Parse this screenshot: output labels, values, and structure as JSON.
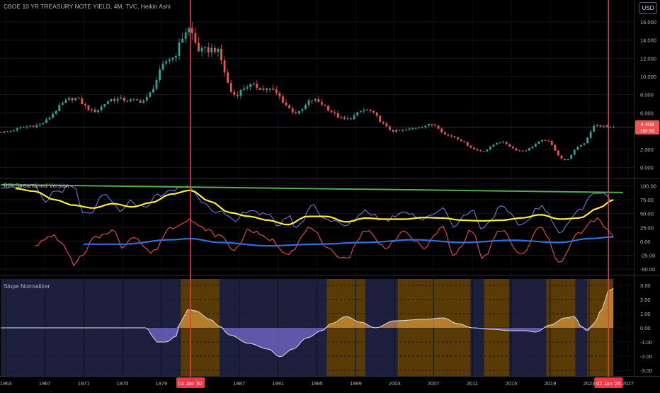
{
  "header": {
    "symbol_title": "CBOE 10 YR TREASURY NOTE YIELD, 4M, TVC, Heikin Ashi",
    "currency_button": "USD",
    "last_price": "4.409",
    "countdown": "1M 8d"
  },
  "colors": {
    "background": "#000000",
    "candle_up": "#26a69a",
    "candle_down": "#ef5350",
    "marker_line": "#f23645",
    "rsi_line": "#7e6fd6",
    "rsi_signal": "#ffeb3b",
    "momentum": "#f24b4b",
    "zero_trend": "#2f6fe0",
    "trendline": "#4caf50",
    "slope_positive_fill": "#ffb74d",
    "slope_negative_fill": "#7e6fd6",
    "band_orange": "#5a3a05",
    "band_blue": "#1c1f3e"
  },
  "markers": [
    {
      "label": "01 Jan '82",
      "year": 1982.0
    },
    {
      "label": "02 Jan '25",
      "year": 2025.0
    }
  ],
  "x_axis": {
    "ticks": [
      "1963",
      "1967",
      "1971",
      "1975",
      "1979",
      "1987",
      "1991",
      "1995",
      "1999",
      "2003",
      "2007",
      "2011",
      "2015",
      "2019",
      "2023",
      "2027"
    ],
    "tick_years": [
      1963,
      1967,
      1971,
      1975,
      1979,
      1987,
      1991,
      1995,
      1999,
      2003,
      2007,
      2011,
      2015,
      2019,
      2023,
      2027
    ],
    "range": [
      1962.4,
      2027.6
    ]
  },
  "panes": {
    "price": {
      "ticks": [
        "16.000",
        "14.000",
        "12.000",
        "10.000",
        "8.000",
        "6.000",
        "2.000",
        "0.000"
      ],
      "tick_values": [
        16,
        14,
        12,
        10,
        8,
        6,
        2,
        0
      ],
      "range": [
        -1.2,
        18.4
      ]
    },
    "rsi": {
      "title": "RSI Streamlined Version",
      "ticks": [
        "100.00",
        "75.00",
        "50.00",
        "25.00",
        "0.00",
        "-25.00",
        "-50.00"
      ],
      "tick_values": [
        100,
        75,
        50,
        25,
        0,
        -25,
        -50
      ],
      "range": [
        -60,
        112
      ]
    },
    "slope": {
      "title": "Slope Normalizer",
      "ticks": [
        "3.00",
        "2.00",
        "1.00",
        "0.00",
        "-1.00",
        "-2.00",
        "-3.00"
      ],
      "tick_values": [
        3,
        2,
        1,
        0,
        -1,
        -2,
        -3
      ],
      "range": [
        -3.4,
        3.7
      ]
    }
  },
  "chart_data": [
    {
      "type": "candlestick",
      "title": "CBOE 10 YR TREASURY NOTE YIELD, 4M, TVC, Heikin Ashi",
      "x_unit": "year",
      "key_points": [
        [
          1962.5,
          3.9
        ],
        [
          1966,
          4.6
        ],
        [
          1970,
          7.6
        ],
        [
          1972,
          6.2
        ],
        [
          1974,
          7.5
        ],
        [
          1977,
          7.3
        ],
        [
          1980,
          12.0
        ],
        [
          1981.8,
          15.2
        ],
        [
          1983,
          12.8
        ],
        [
          1984.5,
          13.0
        ],
        [
          1986.5,
          8.0
        ],
        [
          1988,
          9.0
        ],
        [
          1990,
          8.6
        ],
        [
          1993,
          6.0
        ],
        [
          1994.5,
          7.4
        ],
        [
          1998,
          5.3
        ],
        [
          2000,
          6.3
        ],
        [
          2003,
          4.0
        ],
        [
          2007,
          4.7
        ],
        [
          2008.5,
          3.5
        ],
        [
          2012,
          1.8
        ],
        [
          2013.8,
          2.8
        ],
        [
          2016,
          1.8
        ],
        [
          2018.5,
          3.0
        ],
        [
          2020.5,
          0.8
        ],
        [
          2022.2,
          2.5
        ],
        [
          2023.7,
          4.6
        ],
        [
          2025.5,
          4.409
        ]
      ],
      "last_value": 4.409,
      "y_range": [
        -1.2,
        18.4
      ]
    },
    {
      "type": "line",
      "title": "RSI Streamlined Version",
      "x_unit": "year",
      "series": [
        {
          "name": "",
          "color": "#7e6fd6",
          "points": [
            [
              1962.5,
              100
            ],
            [
              1966,
              98
            ],
            [
              1967,
              70
            ],
            [
              1968,
              90
            ],
            [
              1970,
              97
            ],
            [
              1971,
              48
            ],
            [
              1972,
              55
            ],
            [
              1973,
              82
            ],
            [
              1975,
              55
            ],
            [
              1976,
              72
            ],
            [
              1977,
              62
            ],
            [
              1979,
              85
            ],
            [
              1981.8,
              100
            ],
            [
              1983,
              75
            ],
            [
              1985,
              52
            ],
            [
              1986.5,
              35
            ],
            [
              1988,
              58
            ],
            [
              1990,
              45
            ],
            [
              1991,
              30
            ],
            [
              1992,
              45
            ],
            [
              1993,
              25
            ],
            [
              1994.5,
              65
            ],
            [
              1996,
              40
            ],
            [
              1998,
              28
            ],
            [
              2000,
              55
            ],
            [
              2002,
              38
            ],
            [
              2004,
              55
            ],
            [
              2006,
              40
            ],
            [
              2008,
              60
            ],
            [
              2009,
              30
            ],
            [
              2011,
              55
            ],
            [
              2012,
              25
            ],
            [
              2014,
              60
            ],
            [
              2016,
              30
            ],
            [
              2018,
              62
            ],
            [
              2020,
              20
            ],
            [
              2022,
              55
            ],
            [
              2023.7,
              90
            ],
            [
              2025,
              80
            ],
            [
              2025.5,
              75
            ]
          ]
        },
        {
          "name": "",
          "color": "#ffeb3b",
          "points": [
            [
              1964,
              95
            ],
            [
              1966,
              90
            ],
            [
              1968,
              75
            ],
            [
              1970,
              65
            ],
            [
              1972,
              60
            ],
            [
              1974,
              68
            ],
            [
              1976,
              62
            ],
            [
              1978,
              70
            ],
            [
              1980,
              85
            ],
            [
              1982,
              92
            ],
            [
              1984,
              72
            ],
            [
              1986,
              52
            ],
            [
              1988,
              45
            ],
            [
              1990,
              38
            ],
            [
              1992,
              30
            ],
            [
              1994,
              45
            ],
            [
              1996,
              45
            ],
            [
              1998,
              35
            ],
            [
              2000,
              42
            ],
            [
              2002,
              40
            ],
            [
              2004,
              40
            ],
            [
              2006,
              43
            ],
            [
              2008,
              42
            ],
            [
              2010,
              38
            ],
            [
              2012,
              37
            ],
            [
              2014,
              38
            ],
            [
              2016,
              42
            ],
            [
              2018,
              48
            ],
            [
              2020,
              40
            ],
            [
              2022,
              42
            ],
            [
              2024,
              60
            ],
            [
              2025.5,
              75
            ]
          ]
        },
        {
          "name": "",
          "color": "#f24b4b",
          "points": [
            [
              1966,
              -5
            ],
            [
              1968,
              10
            ],
            [
              1969,
              -10
            ],
            [
              1970,
              -40
            ],
            [
              1971,
              -25
            ],
            [
              1972,
              5
            ],
            [
              1974,
              20
            ],
            [
              1975,
              -10
            ],
            [
              1976,
              10
            ],
            [
              1978,
              -20
            ],
            [
              1980,
              25
            ],
            [
              1981.8,
              40
            ],
            [
              1983,
              25
            ],
            [
              1985,
              10
            ],
            [
              1986.5,
              -15
            ],
            [
              1988,
              20
            ],
            [
              1990,
              5
            ],
            [
              1992,
              -20
            ],
            [
              1994.5,
              25
            ],
            [
              1996,
              -15
            ],
            [
              1998,
              -30
            ],
            [
              2000,
              20
            ],
            [
              2002,
              -10
            ],
            [
              2004,
              15
            ],
            [
              2006,
              -10
            ],
            [
              2008,
              25
            ],
            [
              2009,
              -25
            ],
            [
              2011,
              20
            ],
            [
              2012,
              -30
            ],
            [
              2014,
              20
            ],
            [
              2016,
              -25
            ],
            [
              2018,
              25
            ],
            [
              2020,
              -35
            ],
            [
              2022,
              15
            ],
            [
              2023.7,
              40
            ],
            [
              2025,
              20
            ],
            [
              2025.5,
              5
            ]
          ]
        },
        {
          "name": "",
          "color": "#2f6fe0",
          "points": [
            [
              1971,
              -5
            ],
            [
              1975,
              -5
            ],
            [
              1980,
              3
            ],
            [
              1982,
              5
            ],
            [
              1985,
              -2
            ],
            [
              1990,
              -8
            ],
            [
              1995,
              -5
            ],
            [
              2000,
              -2
            ],
            [
              2005,
              3
            ],
            [
              2010,
              -2
            ],
            [
              2015,
              2
            ],
            [
              2020,
              -2
            ],
            [
              2023,
              5
            ],
            [
              2025.5,
              8
            ]
          ]
        },
        {
          "name": "",
          "color": "#4caf50",
          "points": [
            [
              1962.5,
              102
            ],
            [
              2026.5,
              88
            ]
          ]
        }
      ],
      "y_range": [
        -60,
        112
      ]
    },
    {
      "type": "area",
      "title": "Slope Normalizer",
      "x_unit": "year",
      "series": [
        {
          "name": "",
          "points": [
            [
              1962.5,
              0
            ],
            [
              1977.5,
              0
            ],
            [
              1978,
              -0.5
            ],
            [
              1978.5,
              -1.0
            ],
            [
              1979.5,
              -1.0
            ],
            [
              1980.5,
              -0.6
            ],
            [
              1981,
              0.5
            ],
            [
              1981.8,
              1.3
            ],
            [
              1982.5,
              1.2
            ],
            [
              1984,
              0.6
            ],
            [
              1985,
              0.1
            ],
            [
              1986,
              -0.5
            ],
            [
              1988,
              -1.1
            ],
            [
              1990,
              -1.5
            ],
            [
              1991.2,
              -2.05
            ],
            [
              1992.5,
              -1.5
            ],
            [
              1994,
              -0.7
            ],
            [
              1995.5,
              -0.2
            ],
            [
              1996.5,
              0.3
            ],
            [
              1998,
              0.8
            ],
            [
              1999.5,
              0.4
            ],
            [
              2001,
              0
            ],
            [
              2003,
              0.5
            ],
            [
              2006,
              0.6
            ],
            [
              2008,
              0.7
            ],
            [
              2009.5,
              0.3
            ],
            [
              2011,
              0
            ],
            [
              2013,
              -0.1
            ],
            [
              2015,
              -0.2
            ],
            [
              2016.5,
              -0.2
            ],
            [
              2017.5,
              -0.3
            ],
            [
              2019,
              0.2
            ],
            [
              2020.5,
              0.7
            ],
            [
              2021.5,
              0.8
            ],
            [
              2022.2,
              0.1
            ],
            [
              2022.8,
              -0.2
            ],
            [
              2023.5,
              0.3
            ],
            [
              2024.3,
              1.3
            ],
            [
              2025,
              2.6
            ],
            [
              2025.5,
              2.8
            ]
          ]
        }
      ],
      "background_bands": [
        {
          "from": 1962.5,
          "to": 1981,
          "color": "blue"
        },
        {
          "from": 1981,
          "to": 1985,
          "color": "orange"
        },
        {
          "from": 1985,
          "to": 1996,
          "color": "blue"
        },
        {
          "from": 1996,
          "to": 2000,
          "color": "orange"
        },
        {
          "from": 2000,
          "to": 2003.3,
          "color": "blue"
        },
        {
          "from": 2003.3,
          "to": 2010.8,
          "color": "orange"
        },
        {
          "from": 2010.8,
          "to": 2012.2,
          "color": "blue"
        },
        {
          "from": 2012.2,
          "to": 2014.8,
          "color": "orange"
        },
        {
          "from": 2014.8,
          "to": 2018.6,
          "color": "blue"
        },
        {
          "from": 2018.6,
          "to": 2021.6,
          "color": "orange"
        },
        {
          "from": 2021.6,
          "to": 2022.8,
          "color": "blue"
        },
        {
          "from": 2022.8,
          "to": 2025.5,
          "color": "orange"
        }
      ],
      "y_range": [
        -3.4,
        3.7
      ]
    }
  ]
}
